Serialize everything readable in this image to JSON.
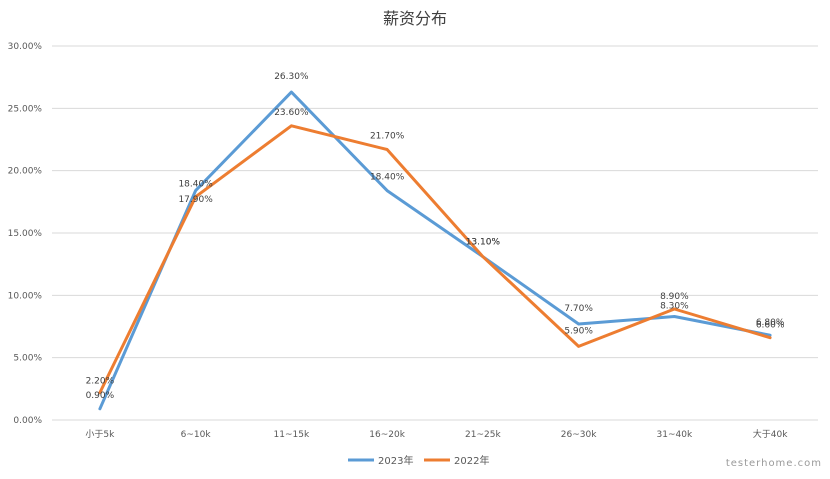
{
  "chart_data": {
    "type": "line",
    "title": "薪资分布",
    "categories": [
      "小于5k",
      "6~10k",
      "11~15k",
      "16~20k",
      "21~25k",
      "26~30k",
      "31~40k",
      "大于40k"
    ],
    "series": [
      {
        "name": "2023年",
        "color": "#5b9bd5",
        "values": [
          0.9,
          18.4,
          26.3,
          18.4,
          13.1,
          7.7,
          8.3,
          6.8
        ],
        "labels": [
          "0.90%",
          "18.40%",
          "26.30%",
          "18.40%",
          "13.10%",
          "7.70%",
          "8.30%",
          "6.80%"
        ]
      },
      {
        "name": "2022年",
        "color": "#ed7d31",
        "values": [
          2.2,
          17.9,
          23.6,
          21.7,
          13.1,
          5.9,
          8.9,
          6.6
        ],
        "labels": [
          "2.20%",
          "17.90%",
          "23.60%",
          "21.70%",
          "13.10%",
          "5.90%",
          "8.90%",
          "6.60%"
        ]
      }
    ],
    "yticks": [
      "0.00%",
      "5.00%",
      "10.00%",
      "15.00%",
      "20.00%",
      "25.00%",
      "30.00%"
    ],
    "ylim": [
      0,
      30
    ],
    "ystep": 5,
    "grid": true,
    "legend": "bottom-center"
  },
  "watermark": "testerhome.com"
}
